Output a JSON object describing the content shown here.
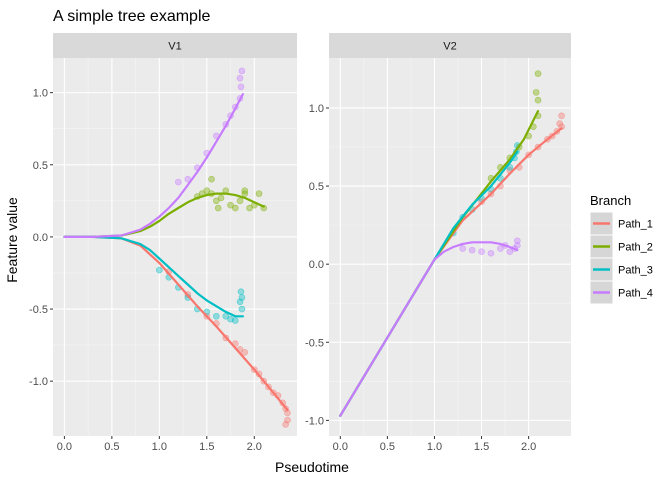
{
  "chart_data": {
    "type": "scatter",
    "title": "A simple tree example",
    "xlabel": "Pseudotime",
    "ylabel": "Feature value",
    "legend": {
      "title": "Branch",
      "position": "right"
    },
    "grid": true,
    "series": [
      {
        "name": "Path_1",
        "color": "#F8766D"
      },
      {
        "name": "Path_2",
        "color": "#7CAE00"
      },
      {
        "name": "Path_3",
        "color": "#00BFC4"
      },
      {
        "name": "Path_4",
        "color": "#C77CFF"
      }
    ],
    "facets": [
      {
        "name": "V1",
        "xlim": [
          -0.12,
          2.45
        ],
        "ylim": [
          -1.38,
          1.24
        ],
        "xticks": [
          0,
          0.5,
          1,
          1.5,
          2
        ],
        "xticklabels": [
          "0.0",
          "0.5",
          "1.0",
          "1.5",
          "2.0"
        ],
        "yticks": [
          -1,
          -0.5,
          0,
          0.5,
          1
        ],
        "yticklabels": [
          "-1.0",
          "-0.5",
          "0.0",
          "0.5",
          "1.0"
        ],
        "curves": [
          {
            "series": "Path_1",
            "x": [
              0,
              0.3,
              0.6,
              0.8,
              1.0,
              1.2,
              1.4,
              1.6,
              1.8,
              2.0,
              2.2,
              2.35
            ],
            "y": [
              0,
              0,
              -0.01,
              -0.06,
              -0.18,
              -0.33,
              -0.48,
              -0.62,
              -0.77,
              -0.92,
              -1.08,
              -1.2
            ]
          },
          {
            "series": "Path_2",
            "x": [
              0,
              0.3,
              0.6,
              0.8,
              0.9,
              1.0,
              1.1,
              1.2,
              1.3,
              1.4,
              1.5,
              1.6,
              1.7,
              1.8,
              1.9,
              2.0,
              2.1
            ],
            "y": [
              0,
              0,
              0.01,
              0.04,
              0.07,
              0.11,
              0.16,
              0.2,
              0.24,
              0.27,
              0.29,
              0.3,
              0.3,
              0.29,
              0.27,
              0.24,
              0.21
            ]
          },
          {
            "series": "Path_3",
            "x": [
              0,
              0.3,
              0.6,
              0.8,
              0.9,
              1.0,
              1.1,
              1.2,
              1.3,
              1.4,
              1.5,
              1.6,
              1.7,
              1.8,
              1.88
            ],
            "y": [
              0,
              0,
              -0.01,
              -0.05,
              -0.09,
              -0.15,
              -0.21,
              -0.27,
              -0.33,
              -0.39,
              -0.44,
              -0.48,
              -0.52,
              -0.55,
              -0.55
            ]
          },
          {
            "series": "Path_4",
            "x": [
              0,
              0.3,
              0.6,
              0.8,
              0.9,
              1.0,
              1.1,
              1.2,
              1.3,
              1.4,
              1.5,
              1.6,
              1.7,
              1.8,
              1.88
            ],
            "y": [
              0,
              0,
              0.01,
              0.05,
              0.09,
              0.14,
              0.2,
              0.27,
              0.36,
              0.45,
              0.55,
              0.66,
              0.77,
              0.89,
              0.99
            ]
          }
        ],
        "points": [
          {
            "series": "Path_1",
            "x": [
              1.1,
              1.3,
              1.5,
              1.6,
              1.7,
              1.8,
              1.85,
              1.9,
              2.0,
              2.05,
              2.1,
              2.15,
              2.2,
              2.25,
              2.3,
              2.33,
              2.35,
              2.35,
              2.33
            ],
            "y": [
              -0.24,
              -0.4,
              -0.55,
              -0.6,
              -0.7,
              -0.74,
              -0.78,
              -0.8,
              -0.92,
              -0.95,
              -1.0,
              -1.04,
              -1.08,
              -1.1,
              -1.15,
              -1.19,
              -1.22,
              -1.27,
              -1.3
            ]
          },
          {
            "series": "Path_2",
            "x": [
              1.4,
              1.45,
              1.5,
              1.55,
              1.6,
              1.65,
              1.7,
              1.75,
              1.8,
              1.85,
              1.9,
              1.95,
              2.0,
              2.05,
              2.1,
              1.55,
              1.62,
              1.9
            ],
            "y": [
              0.28,
              0.3,
              0.32,
              0.3,
              0.25,
              0.27,
              0.32,
              0.22,
              0.2,
              0.25,
              0.3,
              0.2,
              0.22,
              0.3,
              0.2,
              0.4,
              0.2,
              0.32
            ]
          },
          {
            "series": "Path_3",
            "x": [
              1.0,
              1.1,
              1.2,
              1.3,
              1.4,
              1.5,
              1.6,
              1.7,
              1.75,
              1.8,
              1.85,
              1.87,
              1.87,
              1.86
            ],
            "y": [
              -0.23,
              -0.28,
              -0.35,
              -0.42,
              -0.5,
              -0.52,
              -0.55,
              -0.55,
              -0.57,
              -0.58,
              -0.45,
              -0.42,
              -0.5,
              -0.38
            ]
          },
          {
            "series": "Path_4",
            "x": [
              1.2,
              1.3,
              1.4,
              1.5,
              1.6,
              1.7,
              1.75,
              1.8,
              1.85,
              1.86,
              1.87,
              1.85
            ],
            "y": [
              0.38,
              0.4,
              0.48,
              0.58,
              0.7,
              0.78,
              0.84,
              0.9,
              0.96,
              1.04,
              1.15,
              1.1
            ]
          }
        ]
      },
      {
        "name": "V2",
        "xlim": [
          -0.12,
          2.45
        ],
        "ylim": [
          -1.1,
          1.32
        ],
        "xticks": [
          0,
          0.5,
          1,
          1.5,
          2
        ],
        "xticklabels": [
          "0.0",
          "0.5",
          "1.0",
          "1.5",
          "2.0"
        ],
        "yticks": [
          -1,
          -0.5,
          0,
          0.5,
          1
        ],
        "yticklabels": [
          "-1.0",
          "-0.5",
          "0.0",
          "0.5",
          "1.0"
        ],
        "curves": [
          {
            "series": "Path_1",
            "x": [
              0,
              0.5,
              1.0,
              1.3,
              1.6,
              1.8,
              2.0,
              2.2,
              2.35
            ],
            "y": [
              -0.97,
              -0.47,
              0.03,
              0.28,
              0.45,
              0.58,
              0.7,
              0.8,
              0.87
            ]
          },
          {
            "series": "Path_2",
            "x": [
              0,
              0.5,
              1.0,
              1.3,
              1.6,
              1.8,
              1.95,
              2.1
            ],
            "y": [
              -0.97,
              -0.47,
              0.03,
              0.3,
              0.53,
              0.67,
              0.8,
              0.98
            ]
          },
          {
            "series": "Path_3",
            "x": [
              0,
              0.5,
              1.0,
              1.2,
              1.4,
              1.6,
              1.8,
              1.88
            ],
            "y": [
              -0.97,
              -0.47,
              0.03,
              0.23,
              0.38,
              0.5,
              0.65,
              0.72
            ]
          },
          {
            "series": "Path_4",
            "x": [
              0,
              0.5,
              1.0,
              1.1,
              1.2,
              1.3,
              1.4,
              1.5,
              1.6,
              1.7,
              1.8,
              1.88
            ],
            "y": [
              -0.97,
              -0.47,
              0.03,
              0.08,
              0.11,
              0.13,
              0.14,
              0.14,
              0.14,
              0.13,
              0.11,
              0.09
            ]
          }
        ],
        "points": [
          {
            "series": "Path_1",
            "x": [
              1.5,
              1.6,
              1.7,
              1.8,
              1.9,
              2.0,
              2.1,
              2.2,
              2.25,
              2.3,
              2.35,
              2.35,
              2.33
            ],
            "y": [
              0.4,
              0.45,
              0.5,
              0.6,
              0.62,
              0.7,
              0.75,
              0.8,
              0.82,
              0.85,
              0.88,
              0.95,
              0.9
            ]
          },
          {
            "series": "Path_2",
            "x": [
              1.6,
              1.7,
              1.8,
              1.9,
              2.0,
              2.05,
              2.1,
              2.1,
              2.1,
              2.08
            ],
            "y": [
              0.55,
              0.62,
              0.68,
              0.75,
              0.82,
              0.88,
              0.95,
              1.05,
              1.22,
              1.1
            ]
          },
          {
            "series": "Path_3",
            "x": [
              1.2,
              1.3,
              1.4,
              1.5,
              1.6,
              1.7,
              1.8,
              1.85,
              1.87,
              1.88
            ],
            "y": [
              0.2,
              0.3,
              0.35,
              0.42,
              0.48,
              0.55,
              0.62,
              0.68,
              0.72,
              0.76
            ]
          },
          {
            "series": "Path_4",
            "x": [
              1.3,
              1.4,
              1.5,
              1.6,
              1.7,
              1.75,
              1.8,
              1.85,
              1.88,
              1.88
            ],
            "y": [
              0.1,
              0.09,
              0.08,
              0.07,
              0.1,
              0.12,
              0.08,
              0.1,
              0.12,
              0.15
            ]
          }
        ]
      }
    ]
  }
}
